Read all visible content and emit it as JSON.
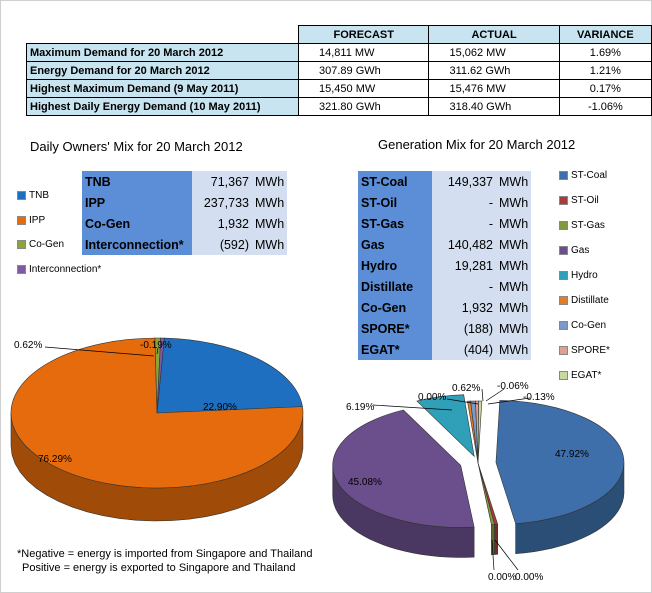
{
  "summary": {
    "headers": [
      "FORECAST",
      "ACTUAL",
      "VARIANCE"
    ],
    "rows": [
      {
        "label": "Maximum Demand for 20 March 2012",
        "forecast": "14,811  MW",
        "actual": "15,062  MW",
        "variance": "1.69%"
      },
      {
        "label": "Energy Demand for 20 March 2012",
        "forecast": "307.89  GWh",
        "actual": "311.62  GWh",
        "variance": "1.21%"
      },
      {
        "label": "Highest Maximum Demand (9 May 2011)",
        "forecast": "15,450  MW",
        "actual": "15,476  MW",
        "variance": "0.17%"
      },
      {
        "label": "Highest Daily Energy Demand (10 May 2011)",
        "forecast": "321.80  GWh",
        "actual": "318.40  GWh",
        "variance": "-1.06%"
      }
    ]
  },
  "owners": {
    "title": "Daily Owners' Mix for 20 March 2012",
    "rows": [
      {
        "name": "TNB",
        "value": "71,367",
        "unit": "MWh"
      },
      {
        "name": "IPP",
        "value": "237,733",
        "unit": "MWh"
      },
      {
        "name": "Co-Gen",
        "value": "1,932",
        "unit": "MWh"
      },
      {
        "name": "Interconnection*",
        "value": "(592)",
        "unit": "MWh"
      }
    ],
    "legend": [
      {
        "label": "TNB",
        "color": "#1e6fc0"
      },
      {
        "label": "IPP",
        "color": "#e56b0c"
      },
      {
        "label": "Co-Gen",
        "color": "#8aa53a"
      },
      {
        "label": "Interconnection*",
        "color": "#7e5aa0"
      }
    ]
  },
  "generation": {
    "title": "Generation Mix for 20 March 2012",
    "rows": [
      {
        "name": "ST-Coal",
        "value": "149,337",
        "unit": "MWh"
      },
      {
        "name": "ST-Oil",
        "value": "-",
        "unit": "MWh"
      },
      {
        "name": "ST-Gas",
        "value": "-",
        "unit": "MWh"
      },
      {
        "name": "Gas",
        "value": "140,482",
        "unit": "MWh"
      },
      {
        "name": "Hydro",
        "value": "19,281",
        "unit": "MWh"
      },
      {
        "name": "Distillate",
        "value": "-",
        "unit": "MWh"
      },
      {
        "name": "Co-Gen",
        "value": "1,932",
        "unit": "MWh"
      },
      {
        "name": "SPORE*",
        "value": "(188)",
        "unit": "MWh"
      },
      {
        "name": "EGAT*",
        "value": "(404)",
        "unit": "MWh"
      }
    ],
    "legend": [
      {
        "label": "ST-Coal",
        "color": "#3e6faa"
      },
      {
        "label": "ST-Oil",
        "color": "#a83c38"
      },
      {
        "label": "ST-Gas",
        "color": "#7f9a3c"
      },
      {
        "label": "Gas",
        "color": "#6a4f8c"
      },
      {
        "label": "Hydro",
        "color": "#30a0b8"
      },
      {
        "label": "Distillate",
        "color": "#e07e2a"
      },
      {
        "label": "Co-Gen",
        "color": "#7a99c9"
      },
      {
        "label": "SPORE*",
        "color": "#e0a090"
      },
      {
        "label": "EGAT*",
        "color": "#c8d8a0"
      }
    ]
  },
  "footnote": {
    "line1": "*Negative = energy is imported from Singapore and Thailand",
    "line2": "Positive = energy is exported to Singapore and Thailand"
  },
  "chart_data": [
    {
      "type": "pie",
      "title": "Daily Owners' Mix for 20 March 2012",
      "categories": [
        "TNB",
        "IPP",
        "Co-Gen",
        "Interconnection*"
      ],
      "values": [
        22.9,
        76.29,
        0.62,
        -0.19
      ],
      "value_labels": [
        "22.90%",
        "76.29%",
        "0.62%",
        "-0.19%"
      ],
      "colors": [
        "#1e6fc0",
        "#e56b0c",
        "#8aa53a",
        "#7e5aa0"
      ],
      "legend_position": "left"
    },
    {
      "type": "pie",
      "title": "Generation Mix for 20 March 2012",
      "categories": [
        "ST-Coal",
        "ST-Oil",
        "ST-Gas",
        "Gas",
        "Hydro",
        "Distillate",
        "Co-Gen",
        "SPORE*",
        "EGAT*"
      ],
      "values": [
        47.92,
        0.0,
        0.0,
        45.08,
        6.19,
        0.0,
        0.62,
        -0.06,
        -0.13
      ],
      "value_labels": [
        "47.92%",
        "0.00%",
        "0.00%",
        "45.08%",
        "6.19%",
        "0.00%",
        "0.62%",
        "-0.06%",
        "-0.13%"
      ],
      "colors": [
        "#3e6faa",
        "#a83c38",
        "#7f9a3c",
        "#6a4f8c",
        "#30a0b8",
        "#e07e2a",
        "#7a99c9",
        "#e0a090",
        "#c8d8a0"
      ],
      "legend_position": "right"
    }
  ]
}
